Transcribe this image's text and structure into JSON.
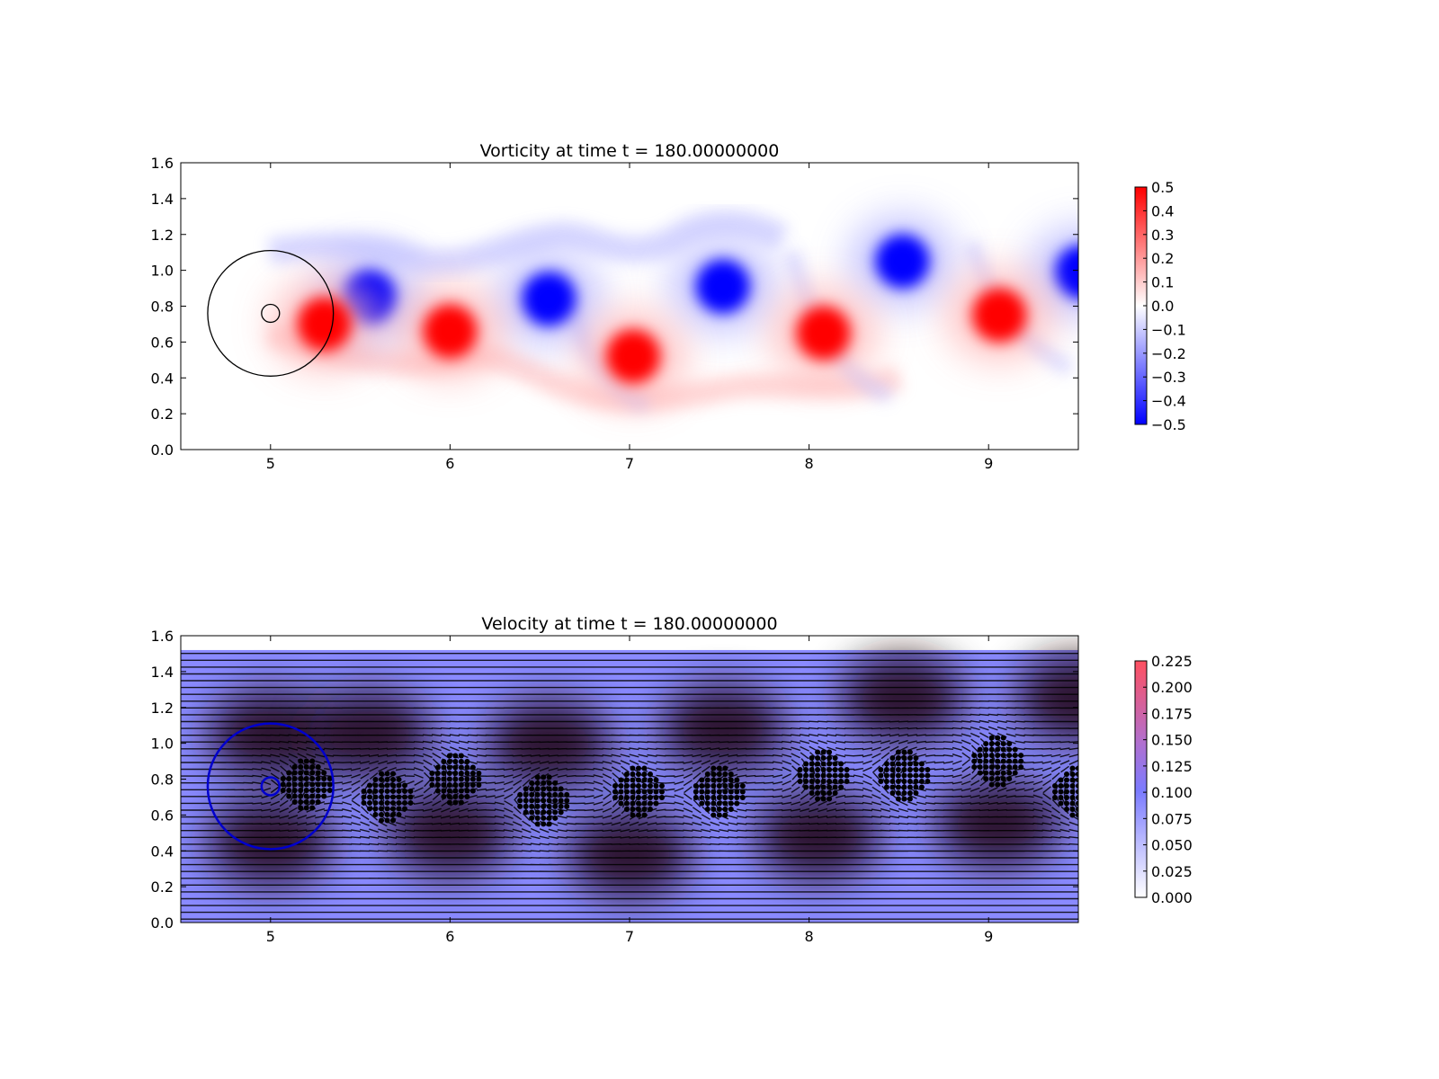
{
  "chart_data": [
    {
      "type": "heatmap",
      "title": "Vorticity at time t =   180.00000000",
      "xlim": [
        4.5,
        9.5
      ],
      "ylim": [
        0.0,
        1.6
      ],
      "xticks": [
        5,
        6,
        7,
        8,
        9
      ],
      "yticks": [
        0.0,
        0.2,
        0.4,
        0.6,
        0.8,
        1.0,
        1.2,
        1.4,
        1.6
      ],
      "colorbar": {
        "range": [
          -0.5,
          0.5
        ],
        "ticks": [
          0.5,
          0.4,
          0.3,
          0.2,
          0.1,
          0.0,
          -0.1,
          -0.2,
          -0.3,
          -0.4,
          -0.5
        ],
        "tick_labels": [
          "0.5",
          "0.4",
          "0.3",
          "0.2",
          "0.1",
          "0.0",
          "−0.1",
          "−0.2",
          "−0.3",
          "−0.4",
          "−0.5"
        ],
        "colors": {
          "low": "#0000ff",
          "mid": "#ffffff",
          "high": "#ff0000"
        }
      },
      "body": {
        "center": [
          5.0,
          0.76
        ],
        "outer_radius": 0.35,
        "inner_radius": 0.05
      },
      "vortices": [
        {
          "x": 5.55,
          "y": 0.85,
          "sign": -1
        },
        {
          "x": 5.3,
          "y": 0.7,
          "sign": 1
        },
        {
          "x": 6.55,
          "y": 0.84,
          "sign": -1
        },
        {
          "x": 6.0,
          "y": 0.66,
          "sign": 1
        },
        {
          "x": 7.52,
          "y": 0.91,
          "sign": -1
        },
        {
          "x": 7.02,
          "y": 0.52,
          "sign": 1
        },
        {
          "x": 8.52,
          "y": 1.05,
          "sign": -1
        },
        {
          "x": 8.08,
          "y": 0.65,
          "sign": 1
        },
        {
          "x": 9.52,
          "y": 0.99,
          "sign": -1
        },
        {
          "x": 9.06,
          "y": 0.75,
          "sign": 1
        }
      ]
    },
    {
      "type": "quiver",
      "title": "Velocity at time t =   180.00000000",
      "xlim": [
        4.5,
        9.5
      ],
      "ylim": [
        0.0,
        1.6
      ],
      "xticks": [
        5,
        6,
        7,
        8,
        9
      ],
      "yticks": [
        0.0,
        0.2,
        0.4,
        0.6,
        0.8,
        1.0,
        1.2,
        1.4,
        1.6
      ],
      "field_top": 1.52,
      "colorbar": {
        "range": [
          0.0,
          0.225
        ],
        "ticks": [
          0.225,
          0.2,
          0.175,
          0.15,
          0.125,
          0.1,
          0.075,
          0.05,
          0.025,
          0.0
        ],
        "tick_labels": [
          "0.225",
          "0.200",
          "0.175",
          "0.150",
          "0.125",
          "0.100",
          "0.075",
          "0.050",
          "0.025",
          "0.000"
        ],
        "colors": {
          "low": "#ffffff",
          "mid": "#7b7bff",
          "high": "#ff5060"
        }
      },
      "body": {
        "center": [
          5.0,
          0.76
        ],
        "outer_radius": 0.35,
        "inner_radius": 0.05,
        "color": "#0000cc"
      },
      "particle_clusters": [
        {
          "x": 5.2,
          "y": 0.77
        },
        {
          "x": 5.65,
          "y": 0.7
        },
        {
          "x": 6.03,
          "y": 0.8
        },
        {
          "x": 6.52,
          "y": 0.68
        },
        {
          "x": 7.05,
          "y": 0.73
        },
        {
          "x": 7.5,
          "y": 0.73
        },
        {
          "x": 8.08,
          "y": 0.82
        },
        {
          "x": 8.53,
          "y": 0.82
        },
        {
          "x": 9.05,
          "y": 0.9
        },
        {
          "x": 9.5,
          "y": 0.73
        }
      ],
      "slow_zones": [
        {
          "x": 5.0,
          "y": 1.05
        },
        {
          "x": 5.0,
          "y": 0.45
        },
        {
          "x": 5.55,
          "y": 1.05
        },
        {
          "x": 6.0,
          "y": 0.5
        },
        {
          "x": 6.55,
          "y": 1.0
        },
        {
          "x": 7.0,
          "y": 0.38
        },
        {
          "x": 7.52,
          "y": 1.08
        },
        {
          "x": 8.05,
          "y": 0.48
        },
        {
          "x": 8.52,
          "y": 1.25
        },
        {
          "x": 9.05,
          "y": 0.55
        },
        {
          "x": 9.5,
          "y": 1.25
        }
      ]
    }
  ]
}
